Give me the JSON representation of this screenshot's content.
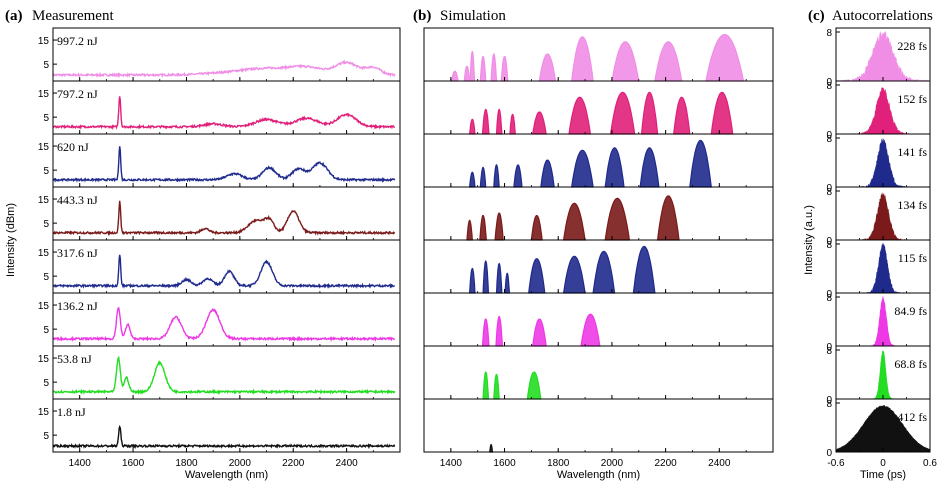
{
  "figure": {
    "panel_a": {
      "letter": "(a)",
      "title": "Measurement"
    },
    "panel_b": {
      "letter": "(b)",
      "title": "Simulation"
    },
    "panel_c": {
      "letter": "(c)",
      "title": "Autocorrelations"
    }
  },
  "chart_data": [
    {
      "type": "line",
      "panel": "a",
      "title": "Measurement",
      "xlabel": "Wavelength (nm)",
      "ylabel": "Intensity (dBm)",
      "xlim": [
        1300,
        2600
      ],
      "xticks": [
        1400,
        1600,
        1800,
        2000,
        2200,
        2400
      ],
      "ylim": [
        -2,
        20
      ],
      "yticks": [
        5,
        15
      ],
      "series": [
        {
          "name": "997.2 nJ",
          "color": "#f08ee6",
          "baseline": 0.5,
          "peaks": [
            [
              1950,
              0.8,
              120
            ],
            [
              2100,
              2.5,
              120
            ],
            [
              2250,
              3,
              90
            ],
            [
              2400,
              5,
              60
            ],
            [
              2500,
              3,
              40
            ]
          ]
        },
        {
          "name": "797.2 nJ",
          "color": "#e0207a",
          "baseline": 1,
          "peaks": [
            [
              1550,
              13,
              5
            ],
            [
              2100,
              3,
              60
            ],
            [
              2250,
              3.5,
              60
            ],
            [
              2400,
              5,
              50
            ],
            [
              1900,
              1.2,
              50
            ]
          ]
        },
        {
          "name": "620 nJ",
          "color": "#1f2a8c",
          "baseline": 1,
          "peaks": [
            [
              1550,
              14,
              5
            ],
            [
              1980,
              2.5,
              40
            ],
            [
              2110,
              5,
              35
            ],
            [
              2220,
              4.5,
              35
            ],
            [
              2300,
              7,
              40
            ]
          ]
        },
        {
          "name": "443.3 nJ",
          "color": "#7a1a1a",
          "baseline": 1,
          "peaks": [
            [
              1550,
              13,
              5
            ],
            [
              1870,
              1.8,
              20
            ],
            [
              2060,
              5,
              40
            ],
            [
              2110,
              5,
              25
            ],
            [
              2200,
              9,
              30
            ]
          ]
        },
        {
          "name": "317.6 nJ",
          "color": "#1f2a8c",
          "baseline": 1,
          "peaks": [
            [
              1550,
              13,
              5
            ],
            [
              1800,
              2.5,
              25
            ],
            [
              1880,
              3,
              25
            ],
            [
              1960,
              6,
              25
            ],
            [
              2100,
              10,
              30
            ]
          ]
        },
        {
          "name": "136.2 nJ",
          "color": "#ee38e6",
          "baseline": 1,
          "peaks": [
            [
              1545,
              13,
              10
            ],
            [
              1580,
              6,
              12
            ],
            [
              1760,
              9,
              30
            ],
            [
              1900,
              12,
              35
            ]
          ]
        },
        {
          "name": "53.8 nJ",
          "color": "#22dd22",
          "baseline": 1,
          "peaks": [
            [
              1545,
              14,
              10
            ],
            [
              1575,
              6,
              12
            ],
            [
              1700,
              12,
              28
            ]
          ]
        },
        {
          "name": "1.8 nJ",
          "color": "#111111",
          "baseline": 0.5,
          "peaks": [
            [
              1550,
              8,
              6
            ]
          ]
        }
      ]
    },
    {
      "type": "area",
      "panel": "b",
      "title": "Simulation",
      "xlabel": "Wavelength (nm)",
      "xlim": [
        1300,
        2600
      ],
      "xticks": [
        1400,
        1600,
        1800,
        2000,
        2200,
        2400
      ],
      "series": [
        {
          "color": "#f08ee6",
          "lobes": [
            [
              1415,
              12,
              0.2
            ],
            [
              1460,
              10,
              0.3
            ],
            [
              1480,
              8,
              0.6
            ],
            [
              1520,
              10,
              0.5
            ],
            [
              1560,
              10,
              0.55
            ],
            [
              1600,
              12,
              0.5
            ],
            [
              1760,
              30,
              0.55
            ],
            [
              1890,
              40,
              0.9
            ],
            [
              2050,
              50,
              0.8
            ],
            [
              2210,
              50,
              0.8
            ],
            [
              2420,
              70,
              0.95
            ]
          ]
        },
        {
          "color": "#e0207a",
          "lobes": [
            [
              1480,
              10,
              0.3
            ],
            [
              1530,
              12,
              0.5
            ],
            [
              1580,
              10,
              0.5
            ],
            [
              1630,
              10,
              0.4
            ],
            [
              1730,
              25,
              0.45
            ],
            [
              1880,
              40,
              0.75
            ],
            [
              2040,
              45,
              0.85
            ],
            [
              2140,
              30,
              0.85
            ],
            [
              2260,
              30,
              0.75
            ],
            [
              2410,
              40,
              0.85
            ]
          ]
        },
        {
          "color": "#1f2a8c",
          "lobes": [
            [
              1480,
              10,
              0.3
            ],
            [
              1520,
              10,
              0.4
            ],
            [
              1570,
              10,
              0.45
            ],
            [
              1650,
              15,
              0.45
            ],
            [
              1760,
              25,
              0.55
            ],
            [
              1890,
              40,
              0.75
            ],
            [
              2010,
              35,
              0.8
            ],
            [
              2140,
              35,
              0.8
            ],
            [
              2330,
              40,
              0.95
            ]
          ]
        },
        {
          "color": "#7a1a1a",
          "lobes": [
            [
              1470,
              10,
              0.4
            ],
            [
              1520,
              12,
              0.5
            ],
            [
              1580,
              15,
              0.55
            ],
            [
              1720,
              20,
              0.5
            ],
            [
              1860,
              40,
              0.75
            ],
            [
              2020,
              45,
              0.85
            ],
            [
              2210,
              40,
              0.9
            ]
          ]
        },
        {
          "color": "#1f2a8c",
          "lobes": [
            [
              1480,
              10,
              0.5
            ],
            [
              1530,
              10,
              0.65
            ],
            [
              1580,
              10,
              0.6
            ],
            [
              1610,
              8,
              0.4
            ],
            [
              1720,
              30,
              0.7
            ],
            [
              1860,
              40,
              0.75
            ],
            [
              1970,
              40,
              0.85
            ],
            [
              2120,
              40,
              0.95
            ]
          ]
        },
        {
          "color": "#ee38e6",
          "lobes": [
            [
              1530,
              12,
              0.55
            ],
            [
              1580,
              12,
              0.6
            ],
            [
              1730,
              25,
              0.55
            ],
            [
              1920,
              35,
              0.65
            ]
          ]
        },
        {
          "color": "#22dd22",
          "lobes": [
            [
              1530,
              10,
              0.55
            ],
            [
              1570,
              10,
              0.5
            ],
            [
              1710,
              25,
              0.55
            ]
          ]
        },
        {
          "color": "#111111",
          "lobes": [
            [
              1550,
              5,
              0.15
            ]
          ]
        }
      ]
    },
    {
      "type": "area",
      "panel": "c",
      "title": "Autocorrelations",
      "xlabel": "Time (ps)",
      "ylabel": "Intensity (a.u.)",
      "xlim": [
        -0.6,
        0.6
      ],
      "xticks": [
        "-0.6",
        "0",
        "0.6"
      ],
      "ylim": [
        0,
        8
      ],
      "yticks": [
        "0",
        "8"
      ],
      "series": [
        {
          "label": "228 fs",
          "color": "#f08ee6",
          "peak": 7.5,
          "width": 0.18,
          "noise": 1.6
        },
        {
          "label": "152 fs",
          "color": "#e0207a",
          "peak": 7.2,
          "width": 0.12,
          "noise": 1.0
        },
        {
          "label": "141 fs",
          "color": "#1f2a8c",
          "peak": 7.6,
          "width": 0.1,
          "noise": 1.0
        },
        {
          "label": "134 fs",
          "color": "#7a1a1a",
          "peak": 7.4,
          "width": 0.1,
          "noise": 0.9
        },
        {
          "label": "115 fs",
          "color": "#1f2a8c",
          "peak": 7.8,
          "width": 0.08,
          "noise": 1.0
        },
        {
          "label": "84.9 fs",
          "color": "#ee38e6",
          "peak": 7.8,
          "width": 0.06,
          "noise": 0.5
        },
        {
          "label": "68.8 fs",
          "color": "#22dd22",
          "peak": 7.8,
          "width": 0.05,
          "noise": 0.5
        },
        {
          "label": "412 fs",
          "color": "#111111",
          "peak": 7.5,
          "width": 0.35,
          "noise": 0.2
        }
      ]
    }
  ]
}
